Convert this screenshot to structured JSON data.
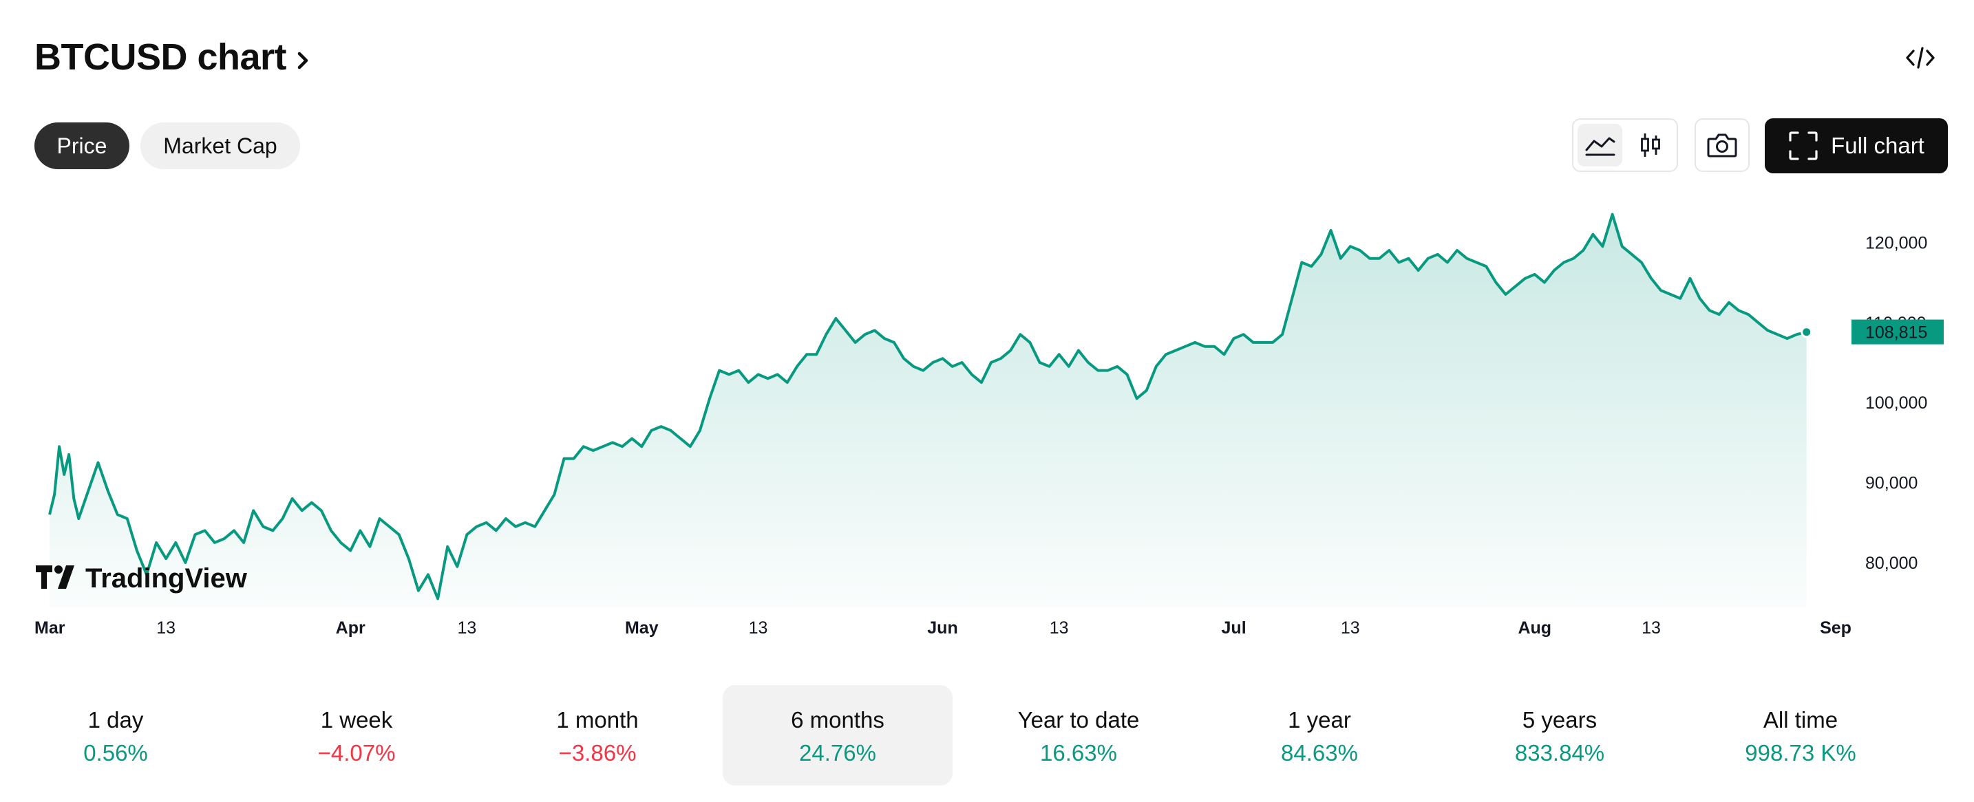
{
  "header": {
    "title": "BTCUSD chart",
    "embed_icon": "code-icon"
  },
  "tabs": [
    {
      "label": "Price",
      "active": true
    },
    {
      "label": "Market Cap",
      "active": false
    }
  ],
  "toolbar": {
    "area_icon": "area-chart-icon",
    "candle_icon": "candlestick-icon",
    "snapshot_icon": "camera-icon",
    "full_chart_label": "Full chart",
    "full_chart_icon": "fullscreen-icon"
  },
  "colors": {
    "accent": "#089981",
    "negative": "#f23645",
    "area_top": "#cde9e2"
  },
  "chart_data": {
    "type": "area",
    "symbol": "BTCUSD",
    "ylim": [
      74500,
      124500
    ],
    "y_ticks": [
      "120,000",
      "110,000",
      "100,000",
      "90,000",
      "80,000"
    ],
    "x_ticks": [
      {
        "label": "Mar",
        "month": true,
        "day": 1
      },
      {
        "label": "13",
        "month": false,
        "day": 13
      },
      {
        "label": "Apr",
        "month": true,
        "day": 32
      },
      {
        "label": "13",
        "month": false,
        "day": 44
      },
      {
        "label": "May",
        "month": true,
        "day": 62
      },
      {
        "label": "13",
        "month": false,
        "day": 74
      },
      {
        "label": "Jun",
        "month": true,
        "day": 93
      },
      {
        "label": "13",
        "month": false,
        "day": 105
      },
      {
        "label": "Jul",
        "month": true,
        "day": 123
      },
      {
        "label": "13",
        "month": false,
        "day": 135
      },
      {
        "label": "Aug",
        "month": true,
        "day": 154
      },
      {
        "label": "13",
        "month": false,
        "day": 166
      },
      {
        "label": "Sep",
        "month": true,
        "day": 185
      }
    ],
    "last_value_label": "108,815",
    "last_value": 108815,
    "series": [
      {
        "points": [
          [
            1,
            86000
          ],
          [
            1.5,
            88500
          ],
          [
            2,
            94500
          ],
          [
            2.5,
            91000
          ],
          [
            3,
            93500
          ],
          [
            3.5,
            88000
          ],
          [
            4,
            85500
          ],
          [
            5,
            89000
          ],
          [
            6,
            92500
          ],
          [
            7,
            89000
          ],
          [
            8,
            86000
          ],
          [
            9,
            85500
          ],
          [
            10,
            81500
          ],
          [
            11,
            78500
          ],
          [
            12,
            82500
          ],
          [
            13,
            80500
          ],
          [
            14,
            82500
          ],
          [
            15,
            80000
          ],
          [
            16,
            83500
          ],
          [
            17,
            84000
          ],
          [
            18,
            82500
          ],
          [
            19,
            83000
          ],
          [
            20,
            84000
          ],
          [
            21,
            82500
          ],
          [
            22,
            86500
          ],
          [
            23,
            84500
          ],
          [
            24,
            84000
          ],
          [
            25,
            85500
          ],
          [
            26,
            88000
          ],
          [
            27,
            86500
          ],
          [
            28,
            87500
          ],
          [
            29,
            86500
          ],
          [
            30,
            84000
          ],
          [
            31,
            82500
          ],
          [
            32,
            81500
          ],
          [
            33,
            84000
          ],
          [
            34,
            82000
          ],
          [
            35,
            85500
          ],
          [
            36,
            84500
          ],
          [
            37,
            83500
          ],
          [
            38,
            80500
          ],
          [
            39,
            76500
          ],
          [
            40,
            78500
          ],
          [
            41,
            75500
          ],
          [
            42,
            82000
          ],
          [
            43,
            79500
          ],
          [
            44,
            83500
          ],
          [
            45,
            84500
          ],
          [
            46,
            85000
          ],
          [
            47,
            84000
          ],
          [
            48,
            85500
          ],
          [
            49,
            84500
          ],
          [
            50,
            85000
          ],
          [
            51,
            84500
          ],
          [
            52,
            86500
          ],
          [
            53,
            88500
          ],
          [
            54,
            93000
          ],
          [
            55,
            93000
          ],
          [
            56,
            94500
          ],
          [
            57,
            94000
          ],
          [
            58,
            94500
          ],
          [
            59,
            95000
          ],
          [
            60,
            94500
          ],
          [
            61,
            95500
          ],
          [
            62,
            94500
          ],
          [
            63,
            96500
          ],
          [
            64,
            97000
          ],
          [
            65,
            96500
          ],
          [
            66,
            95500
          ],
          [
            67,
            94500
          ],
          [
            68,
            96500
          ],
          [
            69,
            100500
          ],
          [
            70,
            104000
          ],
          [
            71,
            103500
          ],
          [
            72,
            104000
          ],
          [
            73,
            102500
          ],
          [
            74,
            103500
          ],
          [
            75,
            103000
          ],
          [
            76,
            103500
          ],
          [
            77,
            102500
          ],
          [
            78,
            104500
          ],
          [
            79,
            106000
          ],
          [
            80,
            106000
          ],
          [
            81,
            108500
          ],
          [
            82,
            110500
          ],
          [
            83,
            109000
          ],
          [
            84,
            107500
          ],
          [
            85,
            108500
          ],
          [
            86,
            109000
          ],
          [
            87,
            108000
          ],
          [
            88,
            107500
          ],
          [
            89,
            105500
          ],
          [
            90,
            104500
          ],
          [
            91,
            104000
          ],
          [
            92,
            105000
          ],
          [
            93,
            105500
          ],
          [
            94,
            104500
          ],
          [
            95,
            105000
          ],
          [
            96,
            103500
          ],
          [
            97,
            102500
          ],
          [
            98,
            105000
          ],
          [
            99,
            105500
          ],
          [
            100,
            106500
          ],
          [
            101,
            108500
          ],
          [
            102,
            107500
          ],
          [
            103,
            105000
          ],
          [
            104,
            104500
          ],
          [
            105,
            106000
          ],
          [
            106,
            104500
          ],
          [
            107,
            106500
          ],
          [
            108,
            105000
          ],
          [
            109,
            104000
          ],
          [
            110,
            104000
          ],
          [
            111,
            104500
          ],
          [
            112,
            103500
          ],
          [
            113,
            100500
          ],
          [
            114,
            101500
          ],
          [
            115,
            104500
          ],
          [
            116,
            106000
          ],
          [
            117,
            106500
          ],
          [
            118,
            107000
          ],
          [
            119,
            107500
          ],
          [
            120,
            107000
          ],
          [
            121,
            107000
          ],
          [
            122,
            106000
          ],
          [
            123,
            108000
          ],
          [
            124,
            108500
          ],
          [
            125,
            107500
          ],
          [
            126,
            107500
          ],
          [
            127,
            107500
          ],
          [
            128,
            108500
          ],
          [
            129,
            113000
          ],
          [
            130,
            117500
          ],
          [
            131,
            117000
          ],
          [
            132,
            118500
          ],
          [
            133,
            121500
          ],
          [
            134,
            118000
          ],
          [
            135,
            119500
          ],
          [
            136,
            119000
          ],
          [
            137,
            118000
          ],
          [
            138,
            118000
          ],
          [
            139,
            119000
          ],
          [
            140,
            117500
          ],
          [
            141,
            118000
          ],
          [
            142,
            116500
          ],
          [
            143,
            118000
          ],
          [
            144,
            118500
          ],
          [
            145,
            117500
          ],
          [
            146,
            119000
          ],
          [
            147,
            118000
          ],
          [
            148,
            117500
          ],
          [
            149,
            117000
          ],
          [
            150,
            115000
          ],
          [
            151,
            113500
          ],
          [
            152,
            114500
          ],
          [
            153,
            115500
          ],
          [
            154,
            116000
          ],
          [
            155,
            115000
          ],
          [
            156,
            116500
          ],
          [
            157,
            117500
          ],
          [
            158,
            118000
          ],
          [
            159,
            119000
          ],
          [
            160,
            121000
          ],
          [
            161,
            119500
          ],
          [
            162,
            123500
          ],
          [
            163,
            119500
          ],
          [
            164,
            118500
          ],
          [
            165,
            117500
          ],
          [
            166,
            115500
          ],
          [
            167,
            114000
          ],
          [
            168,
            113500
          ],
          [
            169,
            113000
          ],
          [
            170,
            115500
          ],
          [
            171,
            113000
          ],
          [
            172,
            111500
          ],
          [
            173,
            111000
          ],
          [
            174,
            112500
          ],
          [
            175,
            111500
          ],
          [
            176,
            111000
          ],
          [
            177,
            110000
          ],
          [
            178,
            109000
          ],
          [
            179,
            108500
          ],
          [
            180,
            108000
          ],
          [
            181,
            108500
          ],
          [
            182,
            108800
          ]
        ]
      }
    ]
  },
  "watermark": {
    "text": "TradingView",
    "icon": "tradingview-logo-icon"
  },
  "periods": [
    {
      "label": "1 day",
      "value": "0.56%",
      "dir": "pos",
      "active": false
    },
    {
      "label": "1 week",
      "value": "−4.07%",
      "dir": "neg",
      "active": false
    },
    {
      "label": "1 month",
      "value": "−3.86%",
      "dir": "neg",
      "active": false
    },
    {
      "label": "6 months",
      "value": "24.76%",
      "dir": "pos",
      "active": true
    },
    {
      "label": "Year to date",
      "value": "16.63%",
      "dir": "pos",
      "active": false
    },
    {
      "label": "1 year",
      "value": "84.63%",
      "dir": "pos",
      "active": false
    },
    {
      "label": "5 years",
      "value": "833.84%",
      "dir": "pos",
      "active": false
    },
    {
      "label": "All time",
      "value": "998.73 K%",
      "dir": "pos",
      "active": false
    }
  ]
}
